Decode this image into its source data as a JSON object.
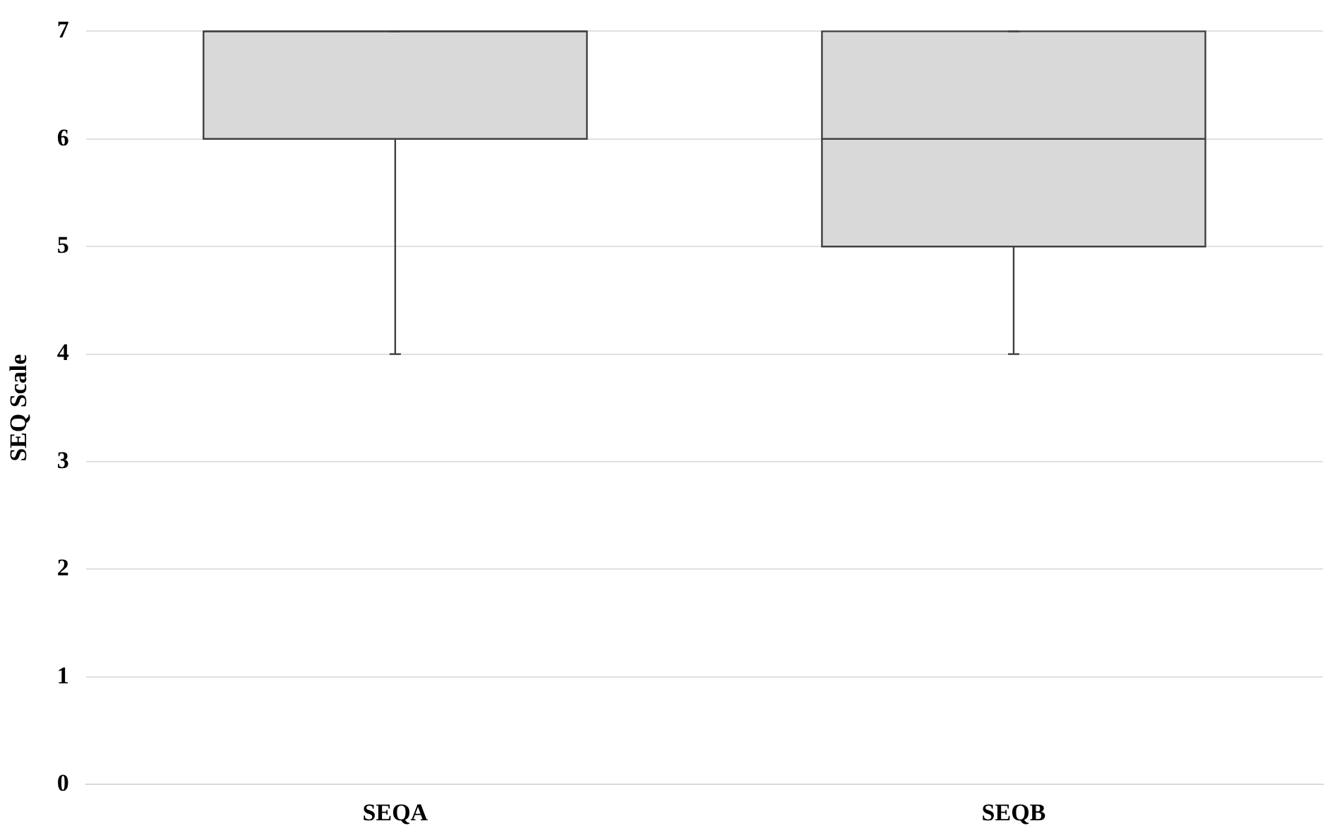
{
  "chart_data": {
    "type": "box",
    "ylabel": "SEQ Scale",
    "categories": [
      "SEQA",
      "SEQB"
    ],
    "boxes": [
      {
        "low": 4,
        "q1": 6,
        "median": 7,
        "q3": 7,
        "high": 7
      },
      {
        "low": 4,
        "q1": 5,
        "median": 6,
        "q3": 7,
        "high": 7
      }
    ],
    "color": "#d9d9d9",
    "ylim": [
      0,
      7
    ],
    "yticks": [
      0,
      1,
      2,
      3,
      4,
      5,
      6,
      7
    ],
    "grid": "y",
    "legend": false
  }
}
